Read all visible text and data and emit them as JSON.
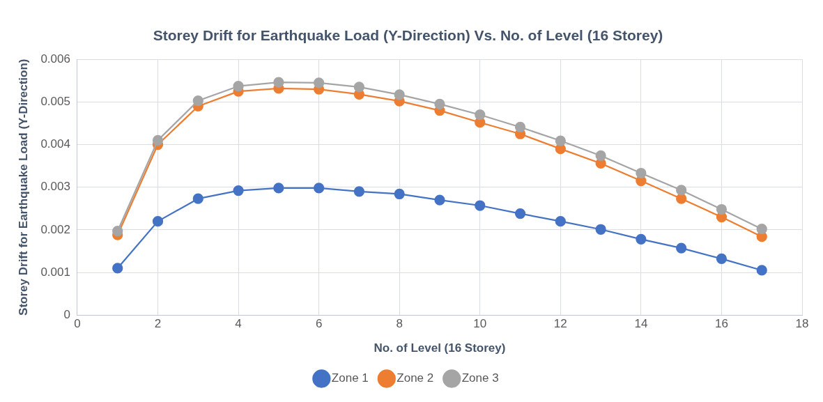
{
  "chart_data": {
    "type": "line",
    "title": "Storey Drift for Earthquake Load (Y-Direction) Vs. No. of Level (16 Storey)",
    "xlabel": "No. of Level (16 Storey)",
    "ylabel": "Storey Drift for Earthquake Load (Y-Direction)",
    "x": [
      1,
      2,
      3,
      4,
      5,
      6,
      7,
      8,
      9,
      10,
      11,
      12,
      13,
      14,
      15,
      16,
      17
    ],
    "series": [
      {
        "name": "Zone 1",
        "color": "#4472c4",
        "values": [
          0.0011,
          0.0022,
          0.00273,
          0.00292,
          0.00298,
          0.00298,
          0.0029,
          0.00284,
          0.0027,
          0.00257,
          0.00238,
          0.0022,
          0.00201,
          0.00178,
          0.00157,
          0.00132,
          0.00105
        ]
      },
      {
        "name": "Zone 2",
        "color": "#ed7d31",
        "values": [
          0.00188,
          0.004,
          0.0049,
          0.00525,
          0.00532,
          0.0053,
          0.00518,
          0.00502,
          0.0048,
          0.00452,
          0.00425,
          0.0039,
          0.00356,
          0.00315,
          0.00273,
          0.0023,
          0.00184
        ]
      },
      {
        "name": "Zone 3",
        "color": "#a5a5a5",
        "values": [
          0.00197,
          0.0041,
          0.00503,
          0.00537,
          0.00546,
          0.00545,
          0.00535,
          0.00517,
          0.00495,
          0.0047,
          0.00441,
          0.00409,
          0.00374,
          0.00333,
          0.00293,
          0.00248,
          0.00202
        ]
      }
    ],
    "xlim": [
      0,
      18
    ],
    "xticks": [
      0,
      2,
      4,
      6,
      8,
      10,
      12,
      14,
      16,
      18
    ],
    "ylim": [
      0,
      0.006
    ],
    "yticks": [
      0,
      0.001,
      0.002,
      0.003,
      0.004,
      0.005,
      0.006
    ],
    "grid": true,
    "legend": "bottom",
    "marker": "circle",
    "line_style": "solid"
  }
}
